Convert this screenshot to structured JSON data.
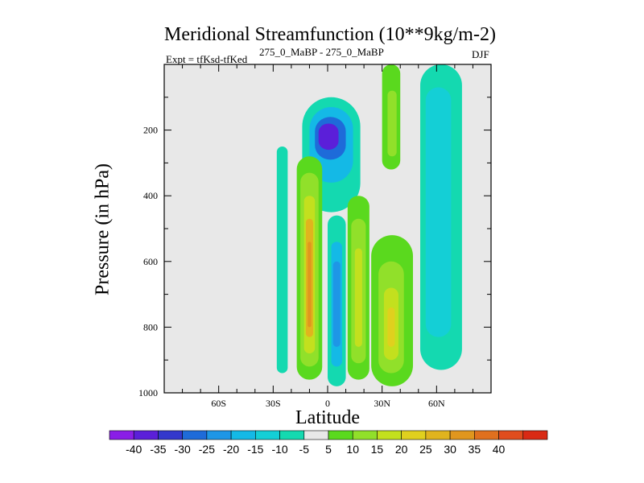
{
  "chart_data": {
    "type": "heatmap",
    "title": "Meridional Streamfunction (10**9kg/m-2)",
    "subtitle_left": "Expt = tfKsd-tfKed",
    "subtitle_center": "275_0_MaBP - 275_0_MaBP",
    "subtitle_right": "DJF",
    "xlabel": "Latitude",
    "ylabel": "Pressure (in hPa)",
    "xlim": [
      -90,
      90
    ],
    "ylim": [
      1000,
      0
    ],
    "x_ticks": [
      {
        "value": -60,
        "label": "60S"
      },
      {
        "value": -30,
        "label": "30S"
      },
      {
        "value": 0,
        "label": "0"
      },
      {
        "value": 30,
        "label": "30N"
      },
      {
        "value": 60,
        "label": "60N"
      }
    ],
    "y_ticks": [
      {
        "value": 200,
        "label": "200"
      },
      {
        "value": 400,
        "label": "400"
      },
      {
        "value": 600,
        "label": "600"
      },
      {
        "value": 800,
        "label": "800"
      },
      {
        "value": 1000,
        "label": "1000"
      }
    ],
    "colorbar": {
      "bins": [
        {
          "color": "#8a1ee6"
        },
        {
          "color": "#5b1fd9"
        },
        {
          "color": "#3338cc"
        },
        {
          "color": "#1e6bd9"
        },
        {
          "color": "#1e96e6"
        },
        {
          "color": "#14b9e6"
        },
        {
          "color": "#14cfd6"
        },
        {
          "color": "#14d9b0"
        },
        {
          "color": "#e8e8e8"
        },
        {
          "color": "#5ad91e"
        },
        {
          "color": "#91e02a"
        },
        {
          "color": "#c3e01e"
        },
        {
          "color": "#e0d01e"
        },
        {
          "color": "#e0b41e"
        },
        {
          "color": "#e0961e"
        },
        {
          "color": "#e0701e"
        },
        {
          "color": "#e04d1e"
        },
        {
          "color": "#d92a14"
        }
      ],
      "labels": [
        "-40",
        "-35",
        "-30",
        "-25",
        "-20",
        "-15",
        "-10",
        "-5",
        "5",
        "10",
        "15",
        "20",
        "25",
        "30",
        "35",
        "40"
      ]
    },
    "cells": [
      {
        "name": "nh-upper-green-cell",
        "lat": [
          30,
          40
        ],
        "p": [
          0,
          320
        ],
        "color": "#5ad91e",
        "inner": [
          {
            "lat": [
              33,
              38
            ],
            "p": [
              80,
              280
            ],
            "color": "#91e02a"
          }
        ]
      },
      {
        "name": "polar-negative-cell",
        "lat": [
          51,
          74
        ],
        "p": [
          0,
          930
        ],
        "color": "#14d9b0",
        "inner": [
          {
            "lat": [
              54,
              68
            ],
            "p": [
              70,
              830
            ],
            "color": "#14cfd6"
          }
        ]
      },
      {
        "name": "upper-equatorial-negative-cell",
        "lat": [
          -14,
          18
        ],
        "p": [
          100,
          450
        ],
        "color": "#14d9b0",
        "inner": [
          {
            "lat": [
              -10,
              14
            ],
            "p": [
              130,
              360
            ],
            "color": "#14b9e6"
          },
          {
            "lat": [
              -7,
              10
            ],
            "p": [
              160,
              290
            ],
            "color": "#1e6bd9"
          },
          {
            "lat": [
              -5,
              6
            ],
            "p": [
              180,
              260
            ],
            "color": "#5b1fd9"
          }
        ]
      },
      {
        "name": "sh-positive-cell",
        "lat": [
          -17,
          -3
        ],
        "p": [
          280,
          960
        ],
        "color": "#5ad91e",
        "inner": [
          {
            "lat": [
              -15,
              -5
            ],
            "p": [
              330,
              920
            ],
            "color": "#91e02a"
          },
          {
            "lat": [
              -13,
              -7
            ],
            "p": [
              400,
              880
            ],
            "color": "#c3e01e"
          },
          {
            "lat": [
              -12,
              -8
            ],
            "p": [
              470,
              830
            ],
            "color": "#e0b41e"
          },
          {
            "lat": [
              -11,
              -9
            ],
            "p": [
              540,
              800
            ],
            "color": "#e0961e"
          }
        ]
      },
      {
        "name": "sh-outer-negative-cell",
        "lat": [
          -28,
          -22
        ],
        "p": [
          250,
          940
        ],
        "color": "#14d9b0",
        "inner": []
      },
      {
        "name": "equatorial-negative-cell",
        "lat": [
          0,
          10
        ],
        "p": [
          460,
          980
        ],
        "color": "#14d9b0",
        "inner": [
          {
            "lat": [
              2,
              8
            ],
            "p": [
              540,
              920
            ],
            "color": "#14b9e6"
          },
          {
            "lat": [
              3,
              7
            ],
            "p": [
              600,
              860
            ],
            "color": "#1e96e6"
          }
        ]
      },
      {
        "name": "nh-positive-cell",
        "lat": [
          11,
          23
        ],
        "p": [
          400,
          960
        ],
        "color": "#5ad91e",
        "inner": [
          {
            "lat": [
              13,
              21
            ],
            "p": [
              470,
              910
            ],
            "color": "#91e02a"
          },
          {
            "lat": [
              15,
              19
            ],
            "p": [
              560,
              860
            ],
            "color": "#c3e01e"
          }
        ]
      },
      {
        "name": "nh-lower-positive-cell",
        "lat": [
          24,
          47
        ],
        "p": [
          520,
          980
        ],
        "color": "#5ad91e",
        "inner": [
          {
            "lat": [
              28,
              42
            ],
            "p": [
              600,
              940
            ],
            "color": "#91e02a"
          },
          {
            "lat": [
              31,
              39
            ],
            "p": [
              680,
              900
            ],
            "color": "#c3e01e"
          },
          {
            "lat": [
              33,
              37
            ],
            "p": [
              740,
              860
            ],
            "color": "#e0d01e"
          }
        ]
      }
    ]
  }
}
